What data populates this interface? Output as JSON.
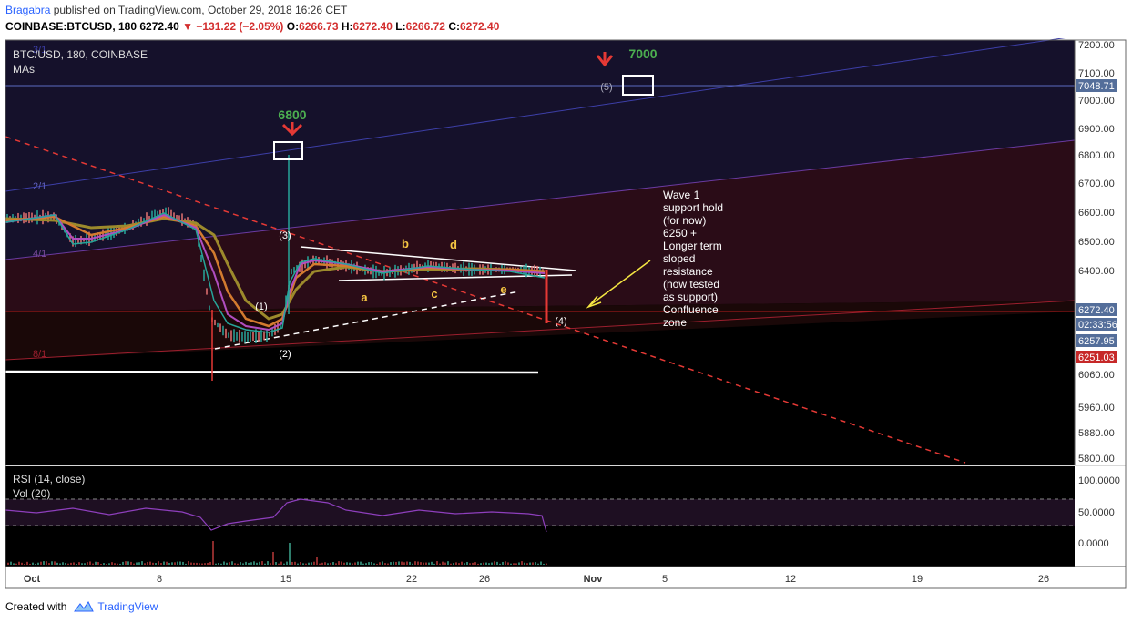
{
  "header": {
    "author": "Bragabra",
    "published": "published on TradingView.com, October 29, 2018 16:26 CET",
    "symbol": "COINBASE:BTCUSD, 180",
    "last": "6272.40",
    "change": "−131.22 (−2.05%)",
    "o_label": "O:",
    "o": "6266.73",
    "h_label": "H:",
    "h": "6272.40",
    "l_label": "L:",
    "l": "6266.72",
    "c_label": "C:",
    "c": "6272.40"
  },
  "legend": {
    "title": "BTC/USD, 180, COINBASE",
    "mas": "MAs",
    "rsi": "RSI (14, close)",
    "vol": "Vol (20)"
  },
  "price_axis": {
    "ticks": [
      "7200.00",
      "7100.00",
      "7048.71",
      "7000.00",
      "6900.00",
      "6800.00",
      "6700.00",
      "6600.00",
      "6500.00",
      "6400.00",
      "6272.40",
      "02:33:56",
      "6257.95",
      "6251.03",
      "6060.00",
      "5960.00",
      "5880.00",
      "5800.00"
    ]
  },
  "rsi_axis": {
    "ticks": [
      "100.0000",
      "50.0000",
      "0.0000"
    ]
  },
  "time_axis": {
    "ticks": [
      "Oct",
      "8",
      "15",
      "22",
      "26",
      "Nov",
      "5",
      "12",
      "19",
      "26"
    ]
  },
  "fib_labels": [
    "3/1",
    "2/1",
    "4/1",
    "8/1"
  ],
  "annotations": {
    "target_6800": "6800",
    "target_7000": "7000",
    "wave1": "(1)",
    "wave2": "(2)",
    "wave3": "(3)",
    "wave4": "(4)",
    "wave5": "(5)",
    "a": "a",
    "b": "b",
    "c": "c",
    "d": "d",
    "e": "e",
    "note": [
      "Wave 1",
      "support hold",
      "(for now)",
      "6250 +",
      "Longer term",
      "sloped",
      "resistance",
      "(now tested",
      "as support)",
      "Confluence",
      "zone"
    ]
  },
  "footer": {
    "created_with": "Created with",
    "brand": "TradingView"
  },
  "colors": {
    "accent_blue": "#2962ff",
    "down_red": "#d32f2f",
    "green_label": "#4caf50",
    "orange_label": "#f5c542",
    "badge_red": "#c62828",
    "badge_blue": "#546e9a"
  }
}
